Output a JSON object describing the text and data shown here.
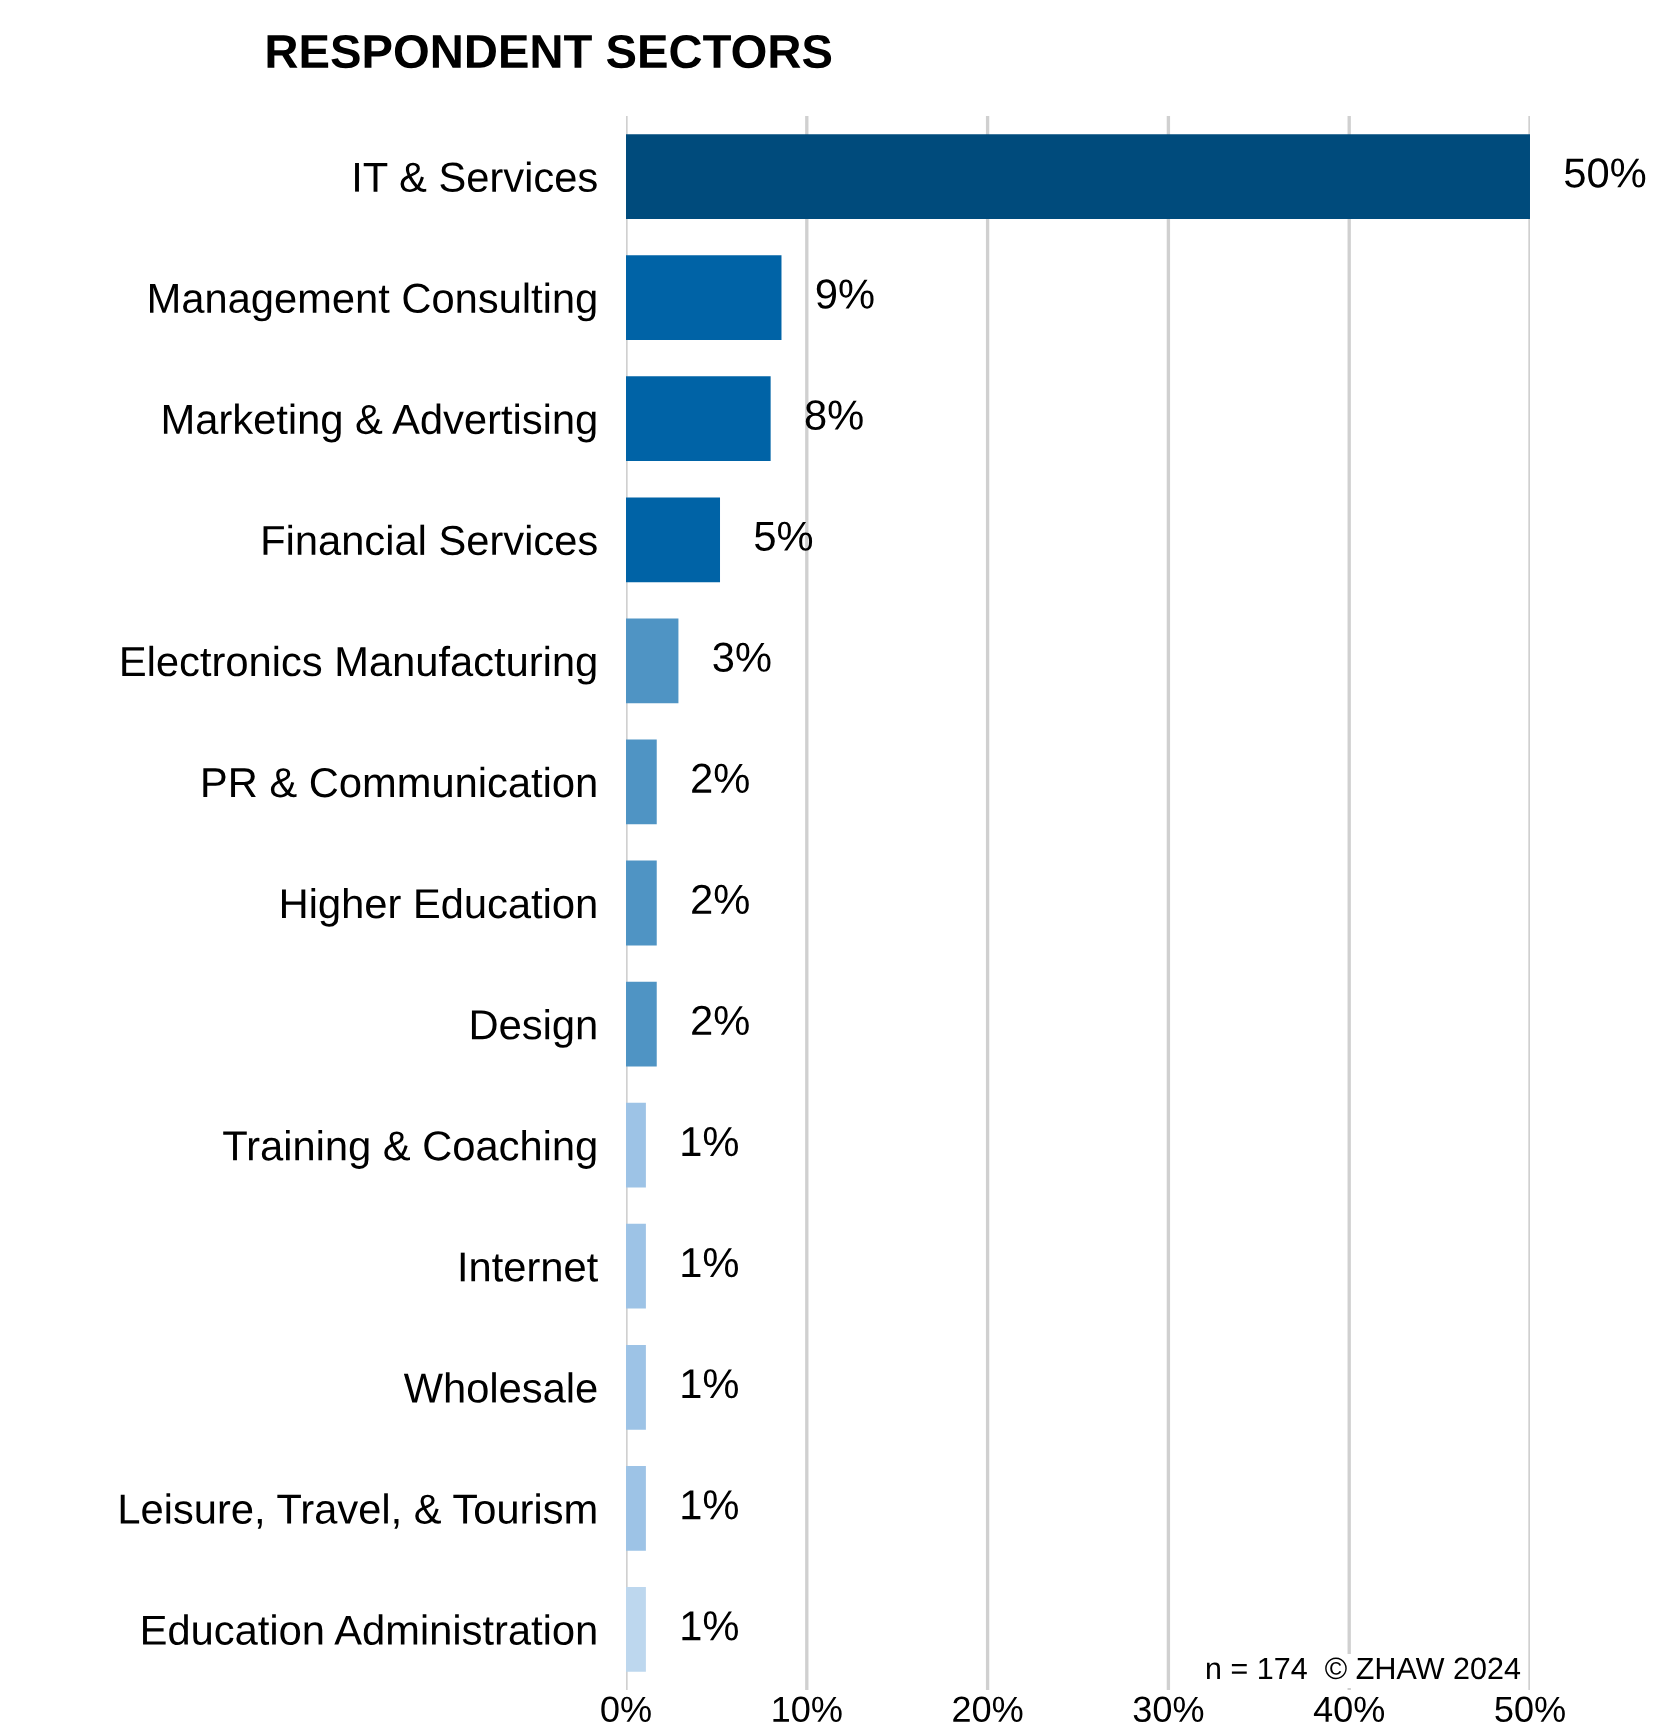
{
  "chart_data": {
    "type": "bar",
    "orientation": "horizontal",
    "title": "RESPONDENT SECTORS",
    "categories": [
      "IT & Services",
      "Management Consulting",
      "Marketing & Advertising",
      "Financial Services",
      "Electronics Manufacturing",
      "PR & Communication",
      "Higher Education",
      "Design",
      "Training & Coaching",
      "Internet",
      "Wholesale",
      "Leisure, Travel, & Tourism",
      "Education Administration"
    ],
    "values": [
      50,
      8.6,
      8.0,
      5.2,
      2.9,
      1.7,
      1.7,
      1.7,
      1.1,
      1.1,
      1.1,
      1.1,
      1.1
    ],
    "value_labels": [
      "50%",
      "9%",
      "8%",
      "5%",
      "3%",
      "2%",
      "2%",
      "2%",
      "1%",
      "1%",
      "1%",
      "1%",
      "1%"
    ],
    "colors": [
      "#004b7c",
      "#0063a6",
      "#0063a6",
      "#0063a6",
      "#4f94c4",
      "#4f94c4",
      "#4f94c4",
      "#4f94c4",
      "#9dc3e6",
      "#9dc3e6",
      "#9dc3e6",
      "#9dc3e6",
      "#bdd7ee"
    ],
    "xlim": [
      0,
      50
    ],
    "xticks": [
      {
        "value": 0,
        "label": "0%"
      },
      {
        "value": 10,
        "label": "10%"
      },
      {
        "value": 20,
        "label": "20%"
      },
      {
        "value": 30,
        "label": "30%"
      },
      {
        "value": 40,
        "label": "40%"
      },
      {
        "value": 50,
        "label": "50%"
      }
    ],
    "grid": "x",
    "annotations": [
      "n = 174  © ZHAW 2024"
    ]
  }
}
